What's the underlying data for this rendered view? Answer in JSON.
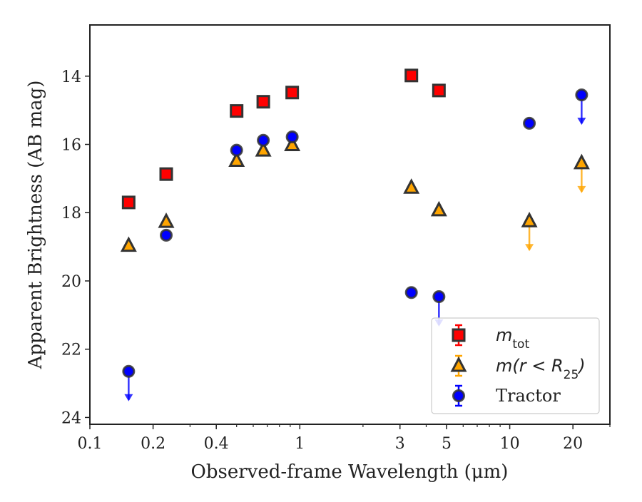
{
  "chart_data": {
    "type": "scatter",
    "xlabel": "Observed-frame Wavelength (μm)",
    "ylabel": "Apparent Brightness (AB mag)",
    "xscale": "log",
    "xlim": [
      0.1,
      30
    ],
    "ylim": [
      24.2,
      12.5
    ],
    "y_inverted": true,
    "x_ticks": [
      {
        "value": 0.1,
        "label": "0.1"
      },
      {
        "value": 0.2,
        "label": "0.2"
      },
      {
        "value": 0.4,
        "label": "0.4"
      },
      {
        "value": 1,
        "label": "1"
      },
      {
        "value": 3,
        "label": "3"
      },
      {
        "value": 5,
        "label": "5"
      },
      {
        "value": 10,
        "label": "10"
      },
      {
        "value": 20,
        "label": "20"
      }
    ],
    "y_ticks": [
      {
        "value": 14,
        "label": "14"
      },
      {
        "value": 16,
        "label": "16"
      },
      {
        "value": 18,
        "label": "18"
      },
      {
        "value": 20,
        "label": "20"
      },
      {
        "value": 22,
        "label": "22"
      },
      {
        "value": 24,
        "label": "24"
      }
    ],
    "grid": false,
    "legend_position": "lower-right",
    "series": [
      {
        "name": "m_tot",
        "marker": "square",
        "color": "#ff0000",
        "points": [
          {
            "x": 0.153,
            "y": 17.7
          },
          {
            "x": 0.231,
            "y": 16.87
          },
          {
            "x": 0.5,
            "y": 15.02
          },
          {
            "x": 0.67,
            "y": 14.75
          },
          {
            "x": 0.92,
            "y": 14.48
          },
          {
            "x": 3.4,
            "y": 13.98
          },
          {
            "x": 4.6,
            "y": 14.42
          }
        ]
      },
      {
        "name": "m(r < R_25)",
        "marker": "triangle",
        "color": "#ffa500",
        "points": [
          {
            "x": 0.153,
            "y": 18.97
          },
          {
            "x": 0.231,
            "y": 18.27
          },
          {
            "x": 0.5,
            "y": 16.48
          },
          {
            "x": 0.67,
            "y": 16.18
          },
          {
            "x": 0.92,
            "y": 16.02
          },
          {
            "x": 3.4,
            "y": 17.27
          },
          {
            "x": 4.6,
            "y": 17.93
          },
          {
            "x": 12.4,
            "y": 18.25,
            "upper_limit": true
          },
          {
            "x": 22.0,
            "y": 16.55,
            "upper_limit": true
          }
        ]
      },
      {
        "name": "Tractor",
        "marker": "circle",
        "color": "#0000ff",
        "points": [
          {
            "x": 0.153,
            "y": 22.65,
            "upper_limit": true
          },
          {
            "x": 0.231,
            "y": 18.66
          },
          {
            "x": 0.5,
            "y": 16.17
          },
          {
            "x": 0.67,
            "y": 15.88
          },
          {
            "x": 0.92,
            "y": 15.78
          },
          {
            "x": 3.4,
            "y": 20.34
          },
          {
            "x": 4.6,
            "y": 20.46,
            "upper_limit": true
          },
          {
            "x": 12.4,
            "y": 15.38
          },
          {
            "x": 22.0,
            "y": 14.55,
            "upper_limit": true
          }
        ]
      }
    ],
    "legend": [
      {
        "series": "m_tot",
        "base": "m",
        "sub": "tot",
        "suffix": ""
      },
      {
        "series": "m(r < R_25)",
        "base": "m(r < R",
        "sub": "25",
        "suffix": ")"
      },
      {
        "series": "Tractor",
        "base": "Tractor",
        "sub": "",
        "suffix": ""
      }
    ]
  }
}
